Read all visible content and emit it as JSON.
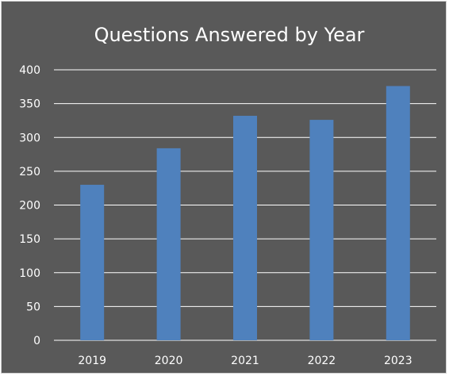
{
  "chart_data": {
    "type": "bar",
    "title": "Questions Answered by Year",
    "categories": [
      "2019",
      "2020",
      "2021",
      "2022",
      "2023"
    ],
    "values": [
      230,
      284,
      332,
      326,
      376
    ],
    "ylim": [
      0,
      400
    ],
    "yticks": [
      0,
      50,
      100,
      150,
      200,
      250,
      300,
      350,
      400
    ],
    "grid": true,
    "legend": "none",
    "colors": {
      "background": "#595959",
      "bar": "#4f81bd",
      "grid": "#ffffff",
      "text": "#ffffff"
    }
  }
}
